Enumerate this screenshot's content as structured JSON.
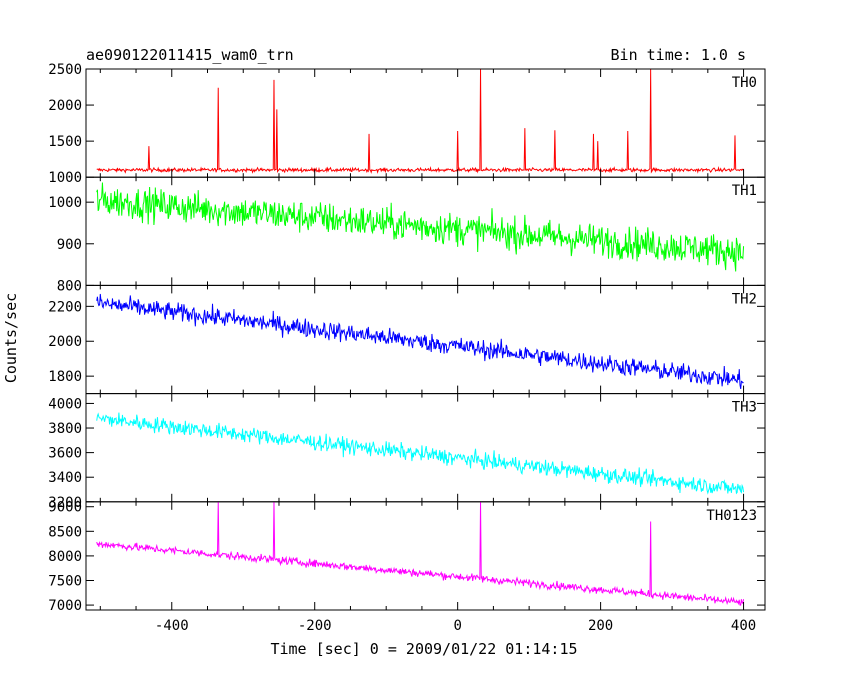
{
  "chart_data": {
    "type": "line",
    "title_left": "ae090122011415_wam0_trn",
    "title_right": "Bin time: 1.0 s",
    "xlabel": "Time [sec] 0 = 2009/01/22 01:14:15",
    "ylabel": "Counts/sec",
    "xlim": [
      -520,
      430
    ],
    "x_ticks": [
      -400,
      -200,
      0,
      200,
      400
    ],
    "x_range_data": [
      -505,
      400
    ],
    "panels": [
      {
        "label": "TH0",
        "color": "#ff0000",
        "ylim": [
          1000,
          2500
        ],
        "y_ticks": [
          1000,
          1500,
          2000,
          2500
        ],
        "start": 1100,
        "end": 1100,
        "noise": 35,
        "spikes": [
          [
            -432,
            1430
          ],
          [
            -335,
            2240
          ],
          [
            -257,
            2350
          ],
          [
            -253,
            1940
          ],
          [
            -124,
            1600
          ],
          [
            0,
            1640
          ],
          [
            32,
            2500
          ],
          [
            94,
            1680
          ],
          [
            136,
            1650
          ],
          [
            190,
            1600
          ],
          [
            196,
            1500
          ],
          [
            238,
            1640
          ],
          [
            270,
            2500
          ],
          [
            388,
            1580
          ]
        ]
      },
      {
        "label": "TH1",
        "color": "#00ff00",
        "ylim": [
          800,
          1060
        ],
        "y_ticks": [
          800,
          900,
          1000
        ],
        "start": 1005,
        "end": 880,
        "noise": 55,
        "spikes": []
      },
      {
        "label": "TH2",
        "color": "#0000ff",
        "ylim": [
          1700,
          2320
        ],
        "y_ticks": [
          1800,
          2000,
          2200
        ],
        "start": 2220,
        "end": 1775,
        "noise": 75,
        "spikes": []
      },
      {
        "label": "TH3",
        "color": "#00ffff",
        "ylim": [
          3200,
          4080
        ],
        "y_ticks": [
          3200,
          3400,
          3600,
          3800,
          4000
        ],
        "start": 3880,
        "end": 3300,
        "noise": 90,
        "spikes": []
      },
      {
        "label": "TH0123",
        "color": "#ff00ff",
        "ylim": [
          6900,
          9100
        ],
        "y_ticks": [
          7000,
          7500,
          8000,
          8500,
          9000
        ],
        "start": 8250,
        "end": 7050,
        "noise": 110,
        "spikes": [
          [
            -335,
            9100
          ],
          [
            -257,
            9100
          ],
          [
            32,
            9100
          ],
          [
            270,
            8700
          ]
        ]
      }
    ]
  }
}
